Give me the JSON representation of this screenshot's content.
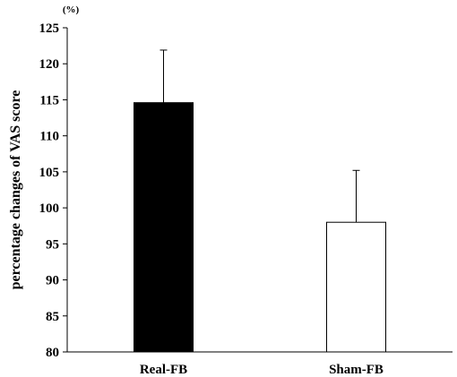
{
  "chart_data": {
    "type": "bar",
    "title": "",
    "xlabel": "",
    "ylabel": "percentage changes of VAS score",
    "unit": "(%)",
    "ylim": [
      80,
      125
    ],
    "yticks": [
      80,
      85,
      90,
      95,
      100,
      105,
      110,
      115,
      120,
      125
    ],
    "grid": false,
    "legend": "none",
    "categories": [
      "Real-FB",
      "Sham-FB"
    ],
    "series": [
      {
        "values": [
          114.6,
          98.0
        ],
        "error_upper": [
          7.3,
          7.2
        ],
        "fills": [
          "#000000",
          "#ffffff"
        ]
      }
    ]
  }
}
